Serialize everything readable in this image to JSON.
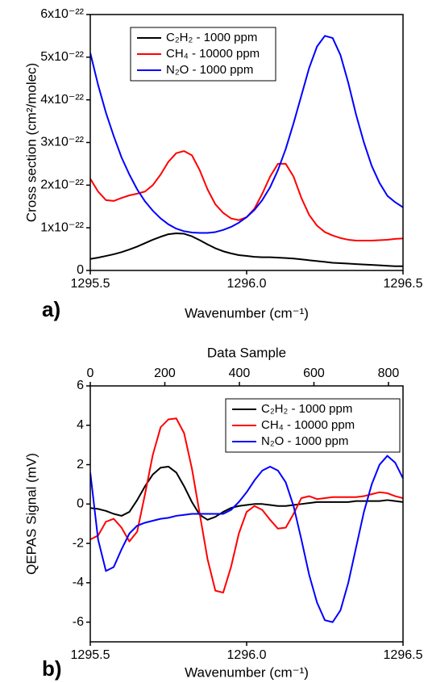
{
  "chart_data": [
    {
      "type": "line",
      "panel_label": "a)",
      "xlabel": "Wavenumber (cm⁻¹)",
      "ylabel": "Cross section (cm²/molec)",
      "xlim": [
        1295.5,
        1296.5
      ],
      "xticks": [
        1295.5,
        {
          "value": 1296,
          "label": "1296.0"
        },
        1296.5
      ],
      "ylim": [
        0,
        6e-22
      ],
      "yticks": [
        0,
        {
          "value": 1e-22,
          "label": "1x10⁻²²"
        },
        {
          "value": 2e-22,
          "label": "2x10⁻²²"
        },
        {
          "value": 3e-22,
          "label": "3x10⁻²²"
        },
        {
          "value": 4e-22,
          "label": "4x10⁻²²"
        },
        {
          "value": 5e-22,
          "label": "5x10⁻²²"
        },
        {
          "value": 6e-22,
          "label": "6x10⁻²²"
        }
      ],
      "legend": "upper left",
      "x": [
        1295.5,
        1295.525,
        1295.55,
        1295.575,
        1295.6,
        1295.625,
        1295.65,
        1295.675,
        1295.7,
        1295.725,
        1295.75,
        1295.775,
        1295.8,
        1295.825,
        1295.85,
        1295.875,
        1295.9,
        1295.925,
        1295.95,
        1295.975,
        1296,
        1296.025,
        1296.05,
        1296.075,
        1296.1,
        1296.125,
        1296.15,
        1296.175,
        1296.2,
        1296.225,
        1296.25,
        1296.275,
        1296.3,
        1296.325,
        1296.35,
        1296.375,
        1296.4,
        1296.425,
        1296.45,
        1296.475,
        1296.5
      ],
      "series": [
        {
          "name": "C₂H₂ - 1000 ppm",
          "color": "#000000",
          "values": [
            2.7e-23,
            3e-23,
            3.4e-23,
            3.8e-23,
            4.3e-23,
            4.9e-23,
            5.6e-23,
            6.4e-23,
            7.2e-23,
            7.9e-23,
            8.5e-23,
            8.7e-23,
            8.6e-23,
            8e-23,
            7.1e-23,
            6.1e-23,
            5.2e-23,
            4.5e-23,
            4e-23,
            3.6e-23,
            3.4e-23,
            3.2e-23,
            3.1e-23,
            3.1e-23,
            3e-23,
            2.9e-23,
            2.8e-23,
            2.6e-23,
            2.4e-23,
            2.2e-23,
            2e-23,
            1.8e-23,
            1.7e-23,
            1.6e-23,
            1.5e-23,
            1.4e-23,
            1.3e-23,
            1.2e-23,
            1.1e-23,
            1e-23,
            1e-23
          ]
        },
        {
          "name": "CH₄ - 10000 ppm",
          "color": "#ff0000",
          "values": [
            2.15e-22,
            1.85e-22,
            1.65e-22,
            1.63e-22,
            1.7e-22,
            1.76e-22,
            1.8e-22,
            1.85e-22,
            2e-22,
            2.25e-22,
            2.55e-22,
            2.75e-22,
            2.8e-22,
            2.7e-22,
            2.35e-22,
            1.9e-22,
            1.55e-22,
            1.35e-22,
            1.22e-22,
            1.18e-22,
            1.25e-22,
            1.45e-22,
            1.8e-22,
            2.2e-22,
            2.5e-22,
            2.5e-22,
            2.2e-22,
            1.7e-22,
            1.3e-22,
            1.05e-22,
            9e-23,
            8.2e-23,
            7.6e-23,
            7.2e-23,
            7e-23,
            7e-23,
            7e-23,
            7.1e-23,
            7.2e-23,
            7.4e-23,
            7.5e-23
          ]
        },
        {
          "name": "N₂O - 1000 ppm",
          "color": "#0000ff",
          "values": [
            5.1e-22,
            4.35e-22,
            3.7e-22,
            3.15e-22,
            2.65e-22,
            2.25e-22,
            1.9e-22,
            1.62e-22,
            1.4e-22,
            1.22e-22,
            1.08e-22,
            9.8e-23,
            9.2e-23,
            8.9e-23,
            8.8e-23,
            8.8e-23,
            9e-23,
            9.5e-23,
            1.02e-22,
            1.12e-22,
            1.25e-22,
            1.42e-22,
            1.65e-22,
            1.95e-22,
            2.35e-22,
            2.85e-22,
            3.45e-22,
            4.1e-22,
            4.75e-22,
            5.25e-22,
            5.5e-22,
            5.45e-22,
            5.05e-22,
            4.4e-22,
            3.65e-22,
            3e-22,
            2.45e-22,
            2.05e-22,
            1.75e-22,
            1.6e-22,
            1.48e-22
          ]
        }
      ]
    },
    {
      "type": "line",
      "panel_label": "b)",
      "xlabel": "Wavenumber (cm⁻¹)",
      "ylabel": "QEPAS Signal (mV)",
      "x2label": "Data Sample",
      "xlim": [
        1295.5,
        1296.5
      ],
      "xticks": [
        1295.5,
        {
          "value": 1296,
          "label": "1296.0"
        },
        1296.5
      ],
      "x2lim": [
        0,
        839
      ],
      "x2ticks": [
        0,
        200,
        400,
        600,
        800
      ],
      "ylim": [
        -7,
        6
      ],
      "yticks": [
        -6,
        -4,
        -2,
        0,
        2,
        4,
        6
      ],
      "legend": "upper right",
      "x": [
        1295.5,
        1295.525,
        1295.55,
        1295.575,
        1295.6,
        1295.625,
        1295.65,
        1295.675,
        1295.7,
        1295.725,
        1295.75,
        1295.775,
        1295.8,
        1295.825,
        1295.85,
        1295.875,
        1295.9,
        1295.925,
        1295.95,
        1295.975,
        1296,
        1296.025,
        1296.05,
        1296.075,
        1296.1,
        1296.125,
        1296.15,
        1296.175,
        1296.2,
        1296.225,
        1296.25,
        1296.275,
        1296.3,
        1296.325,
        1296.35,
        1296.375,
        1296.4,
        1296.425,
        1296.45,
        1296.475,
        1296.5
      ],
      "series": [
        {
          "name": "C₂H₂ - 1000 ppm",
          "color": "#000000",
          "values": [
            -0.2,
            -0.25,
            -0.35,
            -0.5,
            -0.6,
            -0.4,
            0.2,
            0.9,
            1.5,
            1.85,
            1.9,
            1.6,
            0.9,
            0.1,
            -0.55,
            -0.8,
            -0.65,
            -0.4,
            -0.2,
            -0.1,
            -0.05,
            0,
            0,
            -0.05,
            -0.1,
            -0.1,
            -0.05,
            0,
            0.05,
            0.1,
            0.1,
            0.1,
            0.1,
            0.1,
            0.15,
            0.15,
            0.15,
            0.15,
            0.2,
            0.15,
            0.1
          ]
        },
        {
          "name": "CH₄ - 10000 ppm",
          "color": "#ff0000",
          "values": [
            -1.8,
            -1.6,
            -0.9,
            -0.75,
            -1.2,
            -1.9,
            -1.4,
            0.5,
            2.5,
            3.9,
            4.3,
            4.35,
            3.6,
            1.8,
            -0.5,
            -2.8,
            -4.4,
            -4.5,
            -3.2,
            -1.5,
            -0.4,
            -0.1,
            -0.3,
            -0.8,
            -1.25,
            -1.2,
            -0.5,
            0.3,
            0.4,
            0.25,
            0.3,
            0.35,
            0.35,
            0.35,
            0.35,
            0.4,
            0.5,
            0.6,
            0.55,
            0.4,
            0.3
          ]
        },
        {
          "name": "N₂O - 1000 ppm",
          "color": "#0000ff",
          "values": [
            1.6,
            -1.8,
            -3.4,
            -3.2,
            -2.3,
            -1.5,
            -1.1,
            -0.95,
            -0.85,
            -0.75,
            -0.7,
            -0.6,
            -0.55,
            -0.5,
            -0.5,
            -0.5,
            -0.5,
            -0.5,
            -0.3,
            0.1,
            0.6,
            1.2,
            1.7,
            1.9,
            1.7,
            1.1,
            -0.1,
            -1.8,
            -3.6,
            -5,
            -5.9,
            -6,
            -5.4,
            -4,
            -2.2,
            -0.4,
            1,
            2,
            2.45,
            2.1,
            1.3
          ]
        }
      ]
    }
  ]
}
